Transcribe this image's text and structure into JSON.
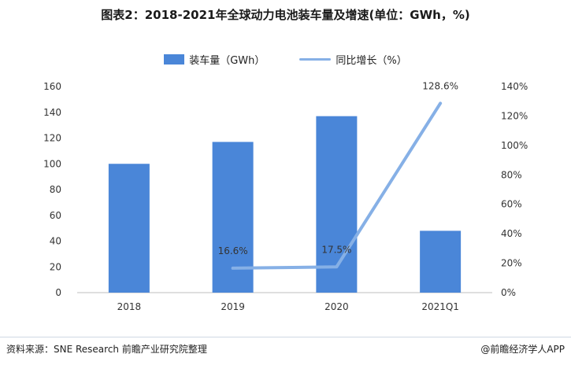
{
  "title": "图表2：2018-2021年全球动力电池装车量及增速(单位：GWh，%)",
  "legend": {
    "bar_label": "装车量（GWh）",
    "line_label": "同比增长（%）"
  },
  "footer": {
    "source": "资料来源：SNE Research 前瞻产业研究院整理",
    "brand": "@前瞻经济学人APP"
  },
  "colors": {
    "bar": "#4a86d8",
    "line": "#86b0e6"
  },
  "chart_data": {
    "type": "bar",
    "categories": [
      "2018",
      "2019",
      "2020",
      "2021Q1"
    ],
    "series": [
      {
        "name": "装车量（GWh）",
        "type": "bar",
        "axis": "left",
        "values": [
          100,
          117,
          137,
          48
        ]
      },
      {
        "name": "同比增长（%）",
        "type": "line",
        "axis": "right",
        "x": [
          "2019",
          "2020",
          "2021Q1"
        ],
        "values": [
          16.6,
          17.5,
          128.6
        ],
        "labels": [
          "16.6%",
          "17.5%",
          "128.6%"
        ]
      }
    ],
    "y_left": {
      "ylim": [
        0,
        160
      ],
      "ticks": [
        "0",
        "20",
        "40",
        "60",
        "80",
        "100",
        "120",
        "140",
        "160"
      ]
    },
    "y_right": {
      "ylim": [
        0,
        140
      ],
      "ticks": [
        "0%",
        "20%",
        "40%",
        "60%",
        "80%",
        "100%",
        "120%",
        "140%"
      ]
    },
    "grid": false,
    "legend_position": "top-center"
  }
}
